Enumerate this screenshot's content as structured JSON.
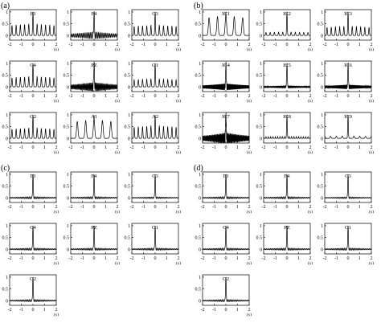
{
  "chart_data": [
    {
      "type": "line",
      "panel_label": "(a)",
      "x_ticks": [
        "-2",
        "-1",
        "0",
        "1",
        "2"
      ],
      "x_unit": "(s)",
      "y_ticks": [
        "0",
        "0.5",
        "1"
      ],
      "xlim": [
        -2,
        2
      ],
      "ylim": [
        -0.2,
        1.1
      ],
      "subplots": [
        {
          "title": "F3",
          "y_at_zero": 1.0,
          "peak_spacing_s": 0.36,
          "peak_amplitude": 0.5,
          "baseline": 0.0
        },
        {
          "title": "F4",
          "y_at_zero": 1.0,
          "peak_spacing_s": 0.12,
          "peak_amplitude": 0.15,
          "baseline": 0.0
        },
        {
          "title": "C3",
          "y_at_zero": 1.0,
          "peak_spacing_s": 0.36,
          "peak_amplitude": 0.45,
          "baseline": 0.0
        },
        {
          "title": "C4",
          "y_at_zero": 1.0,
          "peak_spacing_s": 0.36,
          "peak_amplitude": 0.45,
          "baseline": 0.0
        },
        {
          "title": "PZ",
          "y_at_zero": 1.0,
          "peak_spacing_s": 0.08,
          "peak_amplitude": 0.2,
          "baseline": 0.0
        },
        {
          "title": "O1",
          "y_at_zero": 1.0,
          "peak_spacing_s": 0.36,
          "peak_amplitude": 0.35,
          "baseline": 0.0
        },
        {
          "title": "O2",
          "y_at_zero": 1.0,
          "peak_spacing_s": 0.36,
          "peak_amplitude": 0.45,
          "baseline": 0.0
        },
        {
          "title": "A1",
          "y_at_zero": 1.0,
          "peak_spacing_s": 0.72,
          "peak_amplitude": 0.8,
          "baseline": 0.0
        },
        {
          "title": "A2",
          "y_at_zero": 1.0,
          "peak_spacing_s": 0.36,
          "peak_amplitude": 0.55,
          "baseline": 0.0
        }
      ]
    },
    {
      "type": "line",
      "panel_label": "(b)",
      "x_ticks": [
        "-2",
        "-1",
        "0",
        "1",
        "2"
      ],
      "x_unit": "(s)",
      "y_ticks": [
        "0",
        "0.5",
        "1"
      ],
      "xlim": [
        -2,
        2
      ],
      "ylim": [
        -0.2,
        1.1
      ],
      "subplots": [
        {
          "title": "IC1",
          "y_at_zero": 1.0,
          "peak_spacing_s": 0.72,
          "peak_amplitude": 0.85,
          "baseline": 0.0
        },
        {
          "title": "IC2",
          "y_at_zero": 1.0,
          "peak_spacing_s": 0.36,
          "peak_amplitude": 0.15,
          "baseline": 0.0
        },
        {
          "title": "IC3",
          "y_at_zero": 1.0,
          "peak_spacing_s": 0.36,
          "peak_amplitude": 0.4,
          "baseline": 0.0
        },
        {
          "title": "IC4",
          "y_at_zero": 1.0,
          "peak_spacing_s": 0.05,
          "peak_amplitude": 0.15,
          "baseline": 0.0
        },
        {
          "title": "IC5",
          "y_at_zero": 1.0,
          "peak_spacing_s": 0.05,
          "peak_amplitude": 0.05,
          "baseline": 0.0
        },
        {
          "title": "IC6",
          "y_at_zero": 1.0,
          "peak_spacing_s": 0.05,
          "peak_amplitude": 0.1,
          "baseline": 0.0
        },
        {
          "title": "IC7",
          "y_at_zero": 1.0,
          "peak_spacing_s": 0.03,
          "peak_amplitude": 0.25,
          "baseline": 0.0
        },
        {
          "title": "IC8",
          "y_at_zero": 1.0,
          "peak_spacing_s": 0.2,
          "peak_amplitude": 0.08,
          "baseline": 0.0
        },
        {
          "title": "IC9",
          "y_at_zero": 1.0,
          "peak_spacing_s": 0.5,
          "peak_amplitude": 0.1,
          "baseline": 0.0
        }
      ]
    },
    {
      "type": "line",
      "panel_label": "(c)",
      "x_ticks": [
        "-2",
        "-1",
        "0",
        "1",
        "2"
      ],
      "x_unit": "(s)",
      "y_ticks": [
        "0",
        "0.5",
        "1"
      ],
      "xlim": [
        -2,
        2
      ],
      "ylim": [
        -0.2,
        1.1
      ],
      "subplots": [
        {
          "title": "F3",
          "y_at_zero": 1.0,
          "peak_spacing_s": 0.12,
          "peak_amplitude": 0.05,
          "baseline": 0.0
        },
        {
          "title": "F4",
          "y_at_zero": 1.0,
          "peak_spacing_s": 0.12,
          "peak_amplitude": 0.05,
          "baseline": 0.0
        },
        {
          "title": "C3",
          "y_at_zero": 1.0,
          "peak_spacing_s": 0.12,
          "peak_amplitude": 0.04,
          "baseline": 0.0
        },
        {
          "title": "C4",
          "y_at_zero": 1.0,
          "peak_spacing_s": 0.12,
          "peak_amplitude": 0.05,
          "baseline": 0.0
        },
        {
          "title": "PZ",
          "y_at_zero": 1.0,
          "peak_spacing_s": 0.12,
          "peak_amplitude": 0.05,
          "baseline": 0.0
        },
        {
          "title": "O1",
          "y_at_zero": 1.0,
          "peak_spacing_s": 0.12,
          "peak_amplitude": 0.05,
          "baseline": 0.0
        },
        {
          "title": "O2",
          "y_at_zero": 1.0,
          "peak_spacing_s": 0.12,
          "peak_amplitude": 0.05,
          "baseline": 0.0
        }
      ]
    },
    {
      "type": "line",
      "panel_label": "(d)",
      "x_ticks": [
        "-2",
        "-1",
        "0",
        "1",
        "2"
      ],
      "x_unit": "(s)",
      "y_ticks": [
        "0",
        "0.5",
        "1"
      ],
      "xlim": [
        -2,
        2
      ],
      "ylim": [
        -0.2,
        1.1
      ],
      "subplots": [
        {
          "title": "F3",
          "y_at_zero": 1.0,
          "peak_spacing_s": 0.12,
          "peak_amplitude": 0.05,
          "baseline": 0.0
        },
        {
          "title": "F4",
          "y_at_zero": 1.0,
          "peak_spacing_s": 0.12,
          "peak_amplitude": 0.05,
          "baseline": 0.0
        },
        {
          "title": "C3",
          "y_at_zero": 1.0,
          "peak_spacing_s": 0.12,
          "peak_amplitude": 0.04,
          "baseline": 0.0
        },
        {
          "title": "C4",
          "y_at_zero": 1.0,
          "peak_spacing_s": 0.12,
          "peak_amplitude": 0.05,
          "baseline": 0.0
        },
        {
          "title": "PZ",
          "y_at_zero": 1.0,
          "peak_spacing_s": 0.12,
          "peak_amplitude": 0.05,
          "baseline": 0.0
        },
        {
          "title": "O1",
          "y_at_zero": 1.0,
          "peak_spacing_s": 0.12,
          "peak_amplitude": 0.05,
          "baseline": 0.0
        },
        {
          "title": "O2",
          "y_at_zero": 1.0,
          "peak_spacing_s": 0.12,
          "peak_amplitude": 0.05,
          "baseline": 0.0
        }
      ]
    }
  ]
}
